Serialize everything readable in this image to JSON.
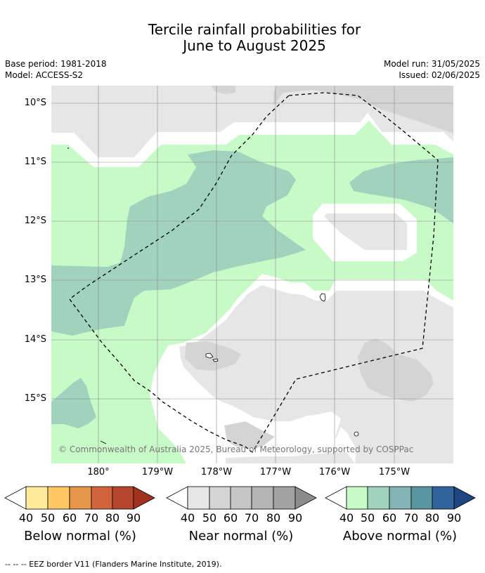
{
  "title": {
    "line1": "Tercile rainfall probabilities for",
    "line2": "June to August 2025"
  },
  "meta": {
    "base_period": "Base period: 1981-2018",
    "model": "Model: ACCESS-S2",
    "model_run": "Model run: 31/05/2025",
    "issued": "Issued: 02/06/2025"
  },
  "map": {
    "copyright": "© Commonwealth of Australia 2025, Bureau of Meteorology, supported by COSPPac",
    "lat_labels": [
      "10°S",
      "11°S",
      "12°S",
      "13°S",
      "14°S",
      "15°S"
    ],
    "lon_labels": [
      "180°",
      "179°W",
      "178°W",
      "177°W",
      "176°W",
      "175°W"
    ],
    "colors": {
      "near_40": "#e6e6e6",
      "near_50": "#d4d4d4",
      "above_40": "#c8fac8",
      "above_50": "#a0d2be",
      "white": "#ffffff"
    }
  },
  "legend": {
    "below": {
      "title": "Below normal (%)",
      "ticks": [
        "40",
        "50",
        "60",
        "70",
        "80",
        "90"
      ],
      "colors": [
        "#ffeb9b",
        "#ffc864",
        "#e6964b",
        "#d2643c",
        "#b4462d",
        "#a0321e"
      ]
    },
    "near": {
      "title": "Near normal (%)",
      "ticks": [
        "40",
        "50",
        "60",
        "70",
        "80",
        "90"
      ],
      "colors": [
        "#e6e6e6",
        "#d4d4d4",
        "#c6c6c6",
        "#b4b4b4",
        "#a2a2a2",
        "#8c8c8c"
      ]
    },
    "above": {
      "title": "Above normal (%)",
      "ticks": [
        "40",
        "50",
        "60",
        "70",
        "80",
        "90"
      ],
      "colors": [
        "#c8fac8",
        "#a0d2be",
        "#82b4b4",
        "#5a96a0",
        "#32649b",
        "#1e4682"
      ]
    }
  },
  "footer": "-- -- -- EEZ border V11 (Flanders Marine Institute, 2019)."
}
